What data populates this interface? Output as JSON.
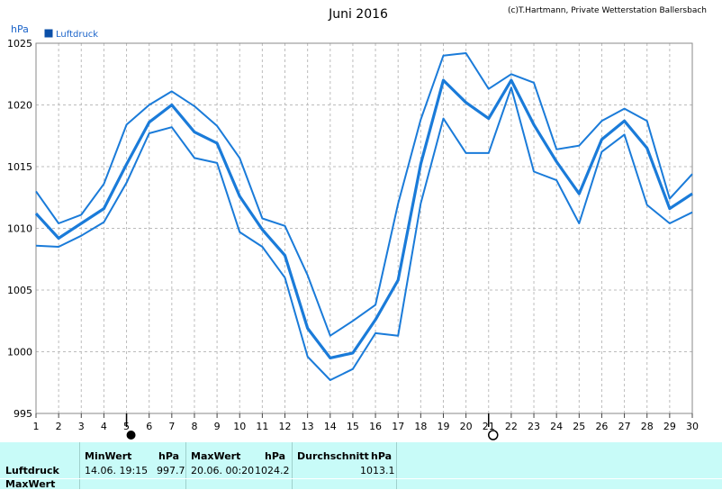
{
  "chart_data": {
    "type": "line",
    "title": "Juni 2016",
    "credit": "(c)T.Hartmann, Private Wetterstation Ballersbach",
    "ylabel": "hPa",
    "legend": "Luftdruck",
    "ylim": [
      995,
      1025
    ],
    "yticks": [
      995,
      1000,
      1005,
      1010,
      1015,
      1020,
      1025
    ],
    "xlim": [
      1,
      30
    ],
    "x": [
      1,
      2,
      3,
      4,
      5,
      6,
      7,
      8,
      9,
      10,
      11,
      12,
      13,
      14,
      15,
      16,
      17,
      18,
      19,
      20,
      21,
      22,
      23,
      24,
      25,
      26,
      27,
      28,
      29,
      30
    ],
    "grid": true,
    "series": [
      {
        "role": "max",
        "values": [
          1013.0,
          1010.4,
          1011.1,
          1013.6,
          1018.4,
          1020.0,
          1021.1,
          1019.9,
          1018.3,
          1015.7,
          1010.8,
          1010.2,
          1006.2,
          1001.3,
          1002.5,
          1003.8,
          1012.0,
          1018.8,
          1024.0,
          1024.2,
          1021.3,
          1022.5,
          1021.8,
          1016.4,
          1016.7,
          1018.7,
          1019.7,
          1018.7,
          1012.4,
          1014.4
        ]
      },
      {
        "role": "avg",
        "values": [
          1011.2,
          1009.2,
          1010.4,
          1011.6,
          1015.2,
          1018.6,
          1020.0,
          1017.8,
          1016.9,
          1012.6,
          1009.9,
          1007.8,
          1001.9,
          999.5,
          999.9,
          1002.6,
          1005.8,
          1015.2,
          1022.0,
          1020.2,
          1018.9,
          1022.0,
          1018.4,
          1015.4,
          1012.8,
          1017.2,
          1018.7,
          1016.5,
          1011.6,
          1012.8
        ]
      },
      {
        "role": "min",
        "values": [
          1008.6,
          1008.5,
          1009.4,
          1010.5,
          1013.7,
          1017.7,
          1018.2,
          1015.7,
          1015.3,
          1009.7,
          1008.5,
          1006.0,
          999.6,
          997.7,
          998.6,
          1001.5,
          1001.3,
          1012.0,
          1018.9,
          1016.1,
          1016.1,
          1021.4,
          1014.6,
          1013.9,
          1010.4,
          1016.2,
          1017.6,
          1011.9,
          1010.4,
          1011.3
        ]
      }
    ],
    "moon_markers": [
      {
        "day": 5,
        "phase": "new-moon"
      },
      {
        "day": 21,
        "phase": "full-moon"
      }
    ],
    "colors": {
      "line": "#1a7bd9",
      "grid": "#bcbcbc",
      "panel": "#c8fbf8",
      "legend_box": "#0b4fa8"
    }
  },
  "panel": {
    "row_label_1": "Luftdruck",
    "row_label_2": "MaxWert",
    "min_header": "MinWert",
    "min_unit": "hPa",
    "min_time": "14.06.  19:15",
    "min_value": "997.7",
    "max_header": "MaxWert",
    "max_unit": "hPa",
    "max_time": "20.06.  00:20",
    "max_value": "1024.2",
    "avg_header": "Durchschnitt",
    "avg_unit": "hPa",
    "avg_value": "1013.1"
  }
}
